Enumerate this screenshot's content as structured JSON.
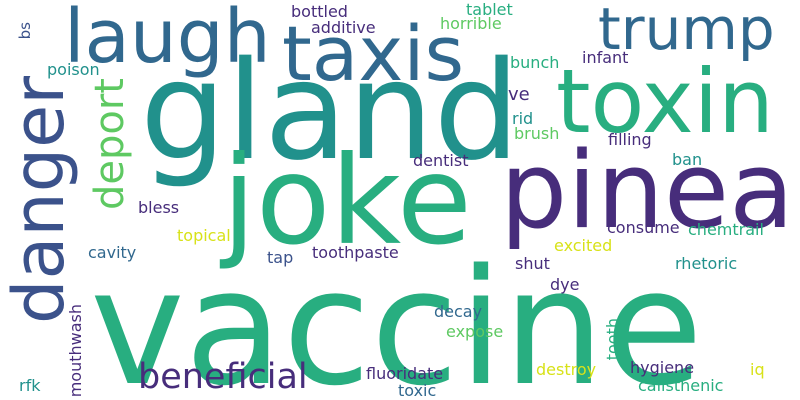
{
  "palette": {
    "purple": "#472d7b",
    "indigo": "#3b528b",
    "blue": "#31688e",
    "teal": "#21918c",
    "green": "#28ae80",
    "lime": "#5ec962",
    "yellowgreen": "#addc30",
    "yellow": "#d8e219"
  },
  "words": {
    "vaccine": "vaccine",
    "gland": "gland",
    "joke": "joke",
    "pineal": "pineal",
    "toxin": "toxin",
    "laugh": "laugh",
    "taxis": "taxis",
    "trump": "trump",
    "danger": "danger",
    "deport": "deport",
    "beneficial": "beneficial",
    "bottled": "bottled",
    "additive": "additive",
    "horrible": "horrible",
    "tablet": "tablet",
    "bs": "bs",
    "poison": "poison",
    "infant": "infant",
    "bunch": "bunch",
    "ve": "ve",
    "rid": "rid",
    "brush": "brush",
    "filling": "filling",
    "dentist": "dentist",
    "ban": "ban",
    "bless": "bless",
    "topical": "topical",
    "cavity": "cavity",
    "tap": "tap",
    "toothpaste": "toothpaste",
    "excited": "excited",
    "consume": "consume",
    "chemtrail": "chemtrail",
    "shut": "shut",
    "rhetoric": "rhetoric",
    "dye": "dye",
    "decay": "decay",
    "expose": "expose",
    "tooth": "tooth",
    "mouthwash": "mouthwash",
    "hygiene": "hygiene",
    "destroy": "destroy",
    "fluoridate": "fluoridate",
    "iq": "iq",
    "calisthenic": "calisthenic",
    "rfk": "rfk",
    "toxic": "toxic"
  }
}
